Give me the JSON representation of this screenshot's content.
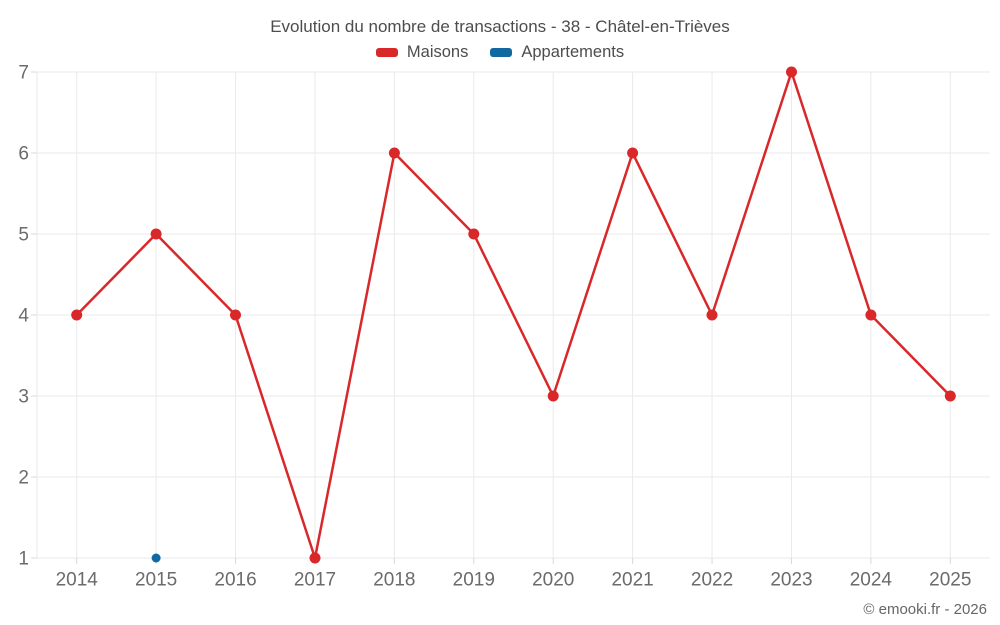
{
  "header": {
    "title": "Evolution du nombre de transactions - 38 - Châtel-en-Trièves"
  },
  "legend": {
    "items": [
      {
        "label": "Maisons",
        "color": "#d9282a"
      },
      {
        "label": "Appartements",
        "color": "#1269a2"
      }
    ]
  },
  "footer": {
    "copyright": "© emooki.fr - 2026"
  },
  "chart_data": {
    "type": "line",
    "title": "Evolution du nombre de transactions - 38 - Châtel-en-Trièves",
    "x": [
      2014,
      2015,
      2016,
      2017,
      2018,
      2019,
      2020,
      2021,
      2022,
      2023,
      2024,
      2025
    ],
    "series": [
      {
        "name": "Maisons",
        "color": "#d9282a",
        "values": [
          4,
          5,
          4,
          1,
          6,
          5,
          3,
          6,
          4,
          7,
          4,
          3
        ],
        "marker_radius": 5.5,
        "line_width": 2.5
      },
      {
        "name": "Appartements",
        "color": "#1269a2",
        "values": [
          null,
          1,
          null,
          null,
          null,
          null,
          null,
          null,
          null,
          null,
          null,
          null
        ],
        "marker_radius": 4.5,
        "line_width": 2.5
      }
    ],
    "ylim": [
      1,
      7
    ],
    "yticks": [
      1,
      2,
      3,
      4,
      5,
      6,
      7
    ],
    "grid": true,
    "grid_color": "#eaeaea",
    "tick_color": "#d8d8d8",
    "axis_label_color": "#6b6b6b",
    "legend_position": "top",
    "xlabel": "",
    "ylabel": ""
  }
}
